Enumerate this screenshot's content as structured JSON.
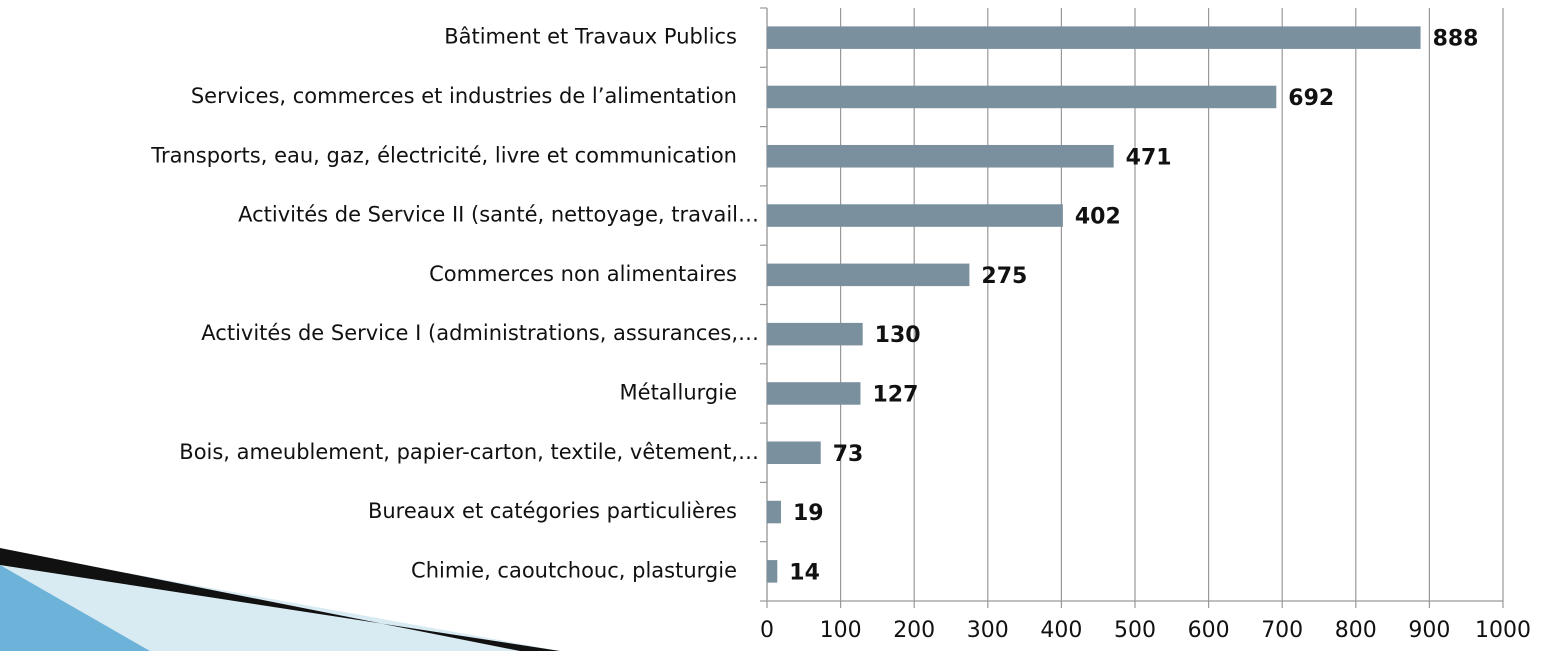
{
  "chart_data": {
    "type": "hbar",
    "categories": [
      "Bâtiment et Travaux Publics",
      "Services, commerces et industries de l’alimentation",
      "Transports, eau, gaz, électricité, livre et communication",
      "Activités de Service II (santé, nettoyage, travail…",
      "Commerces non alimentaires",
      "Activités de Service I (administrations, assurances,…",
      "Métallurgie",
      "Bois, ameublement, papier-carton, textile, vêtement,…",
      "Bureaux et catégories particulières",
      "Chimie, caoutchouc, plasturgie"
    ],
    "values": [
      888,
      692,
      471,
      402,
      275,
      130,
      127,
      73,
      19,
      14
    ],
    "color": "#7b909e",
    "xlim": [
      0,
      1000
    ],
    "xticks": [
      0,
      100,
      200,
      300,
      400,
      500,
      600,
      700,
      800,
      900,
      1000
    ],
    "grid": true
  }
}
